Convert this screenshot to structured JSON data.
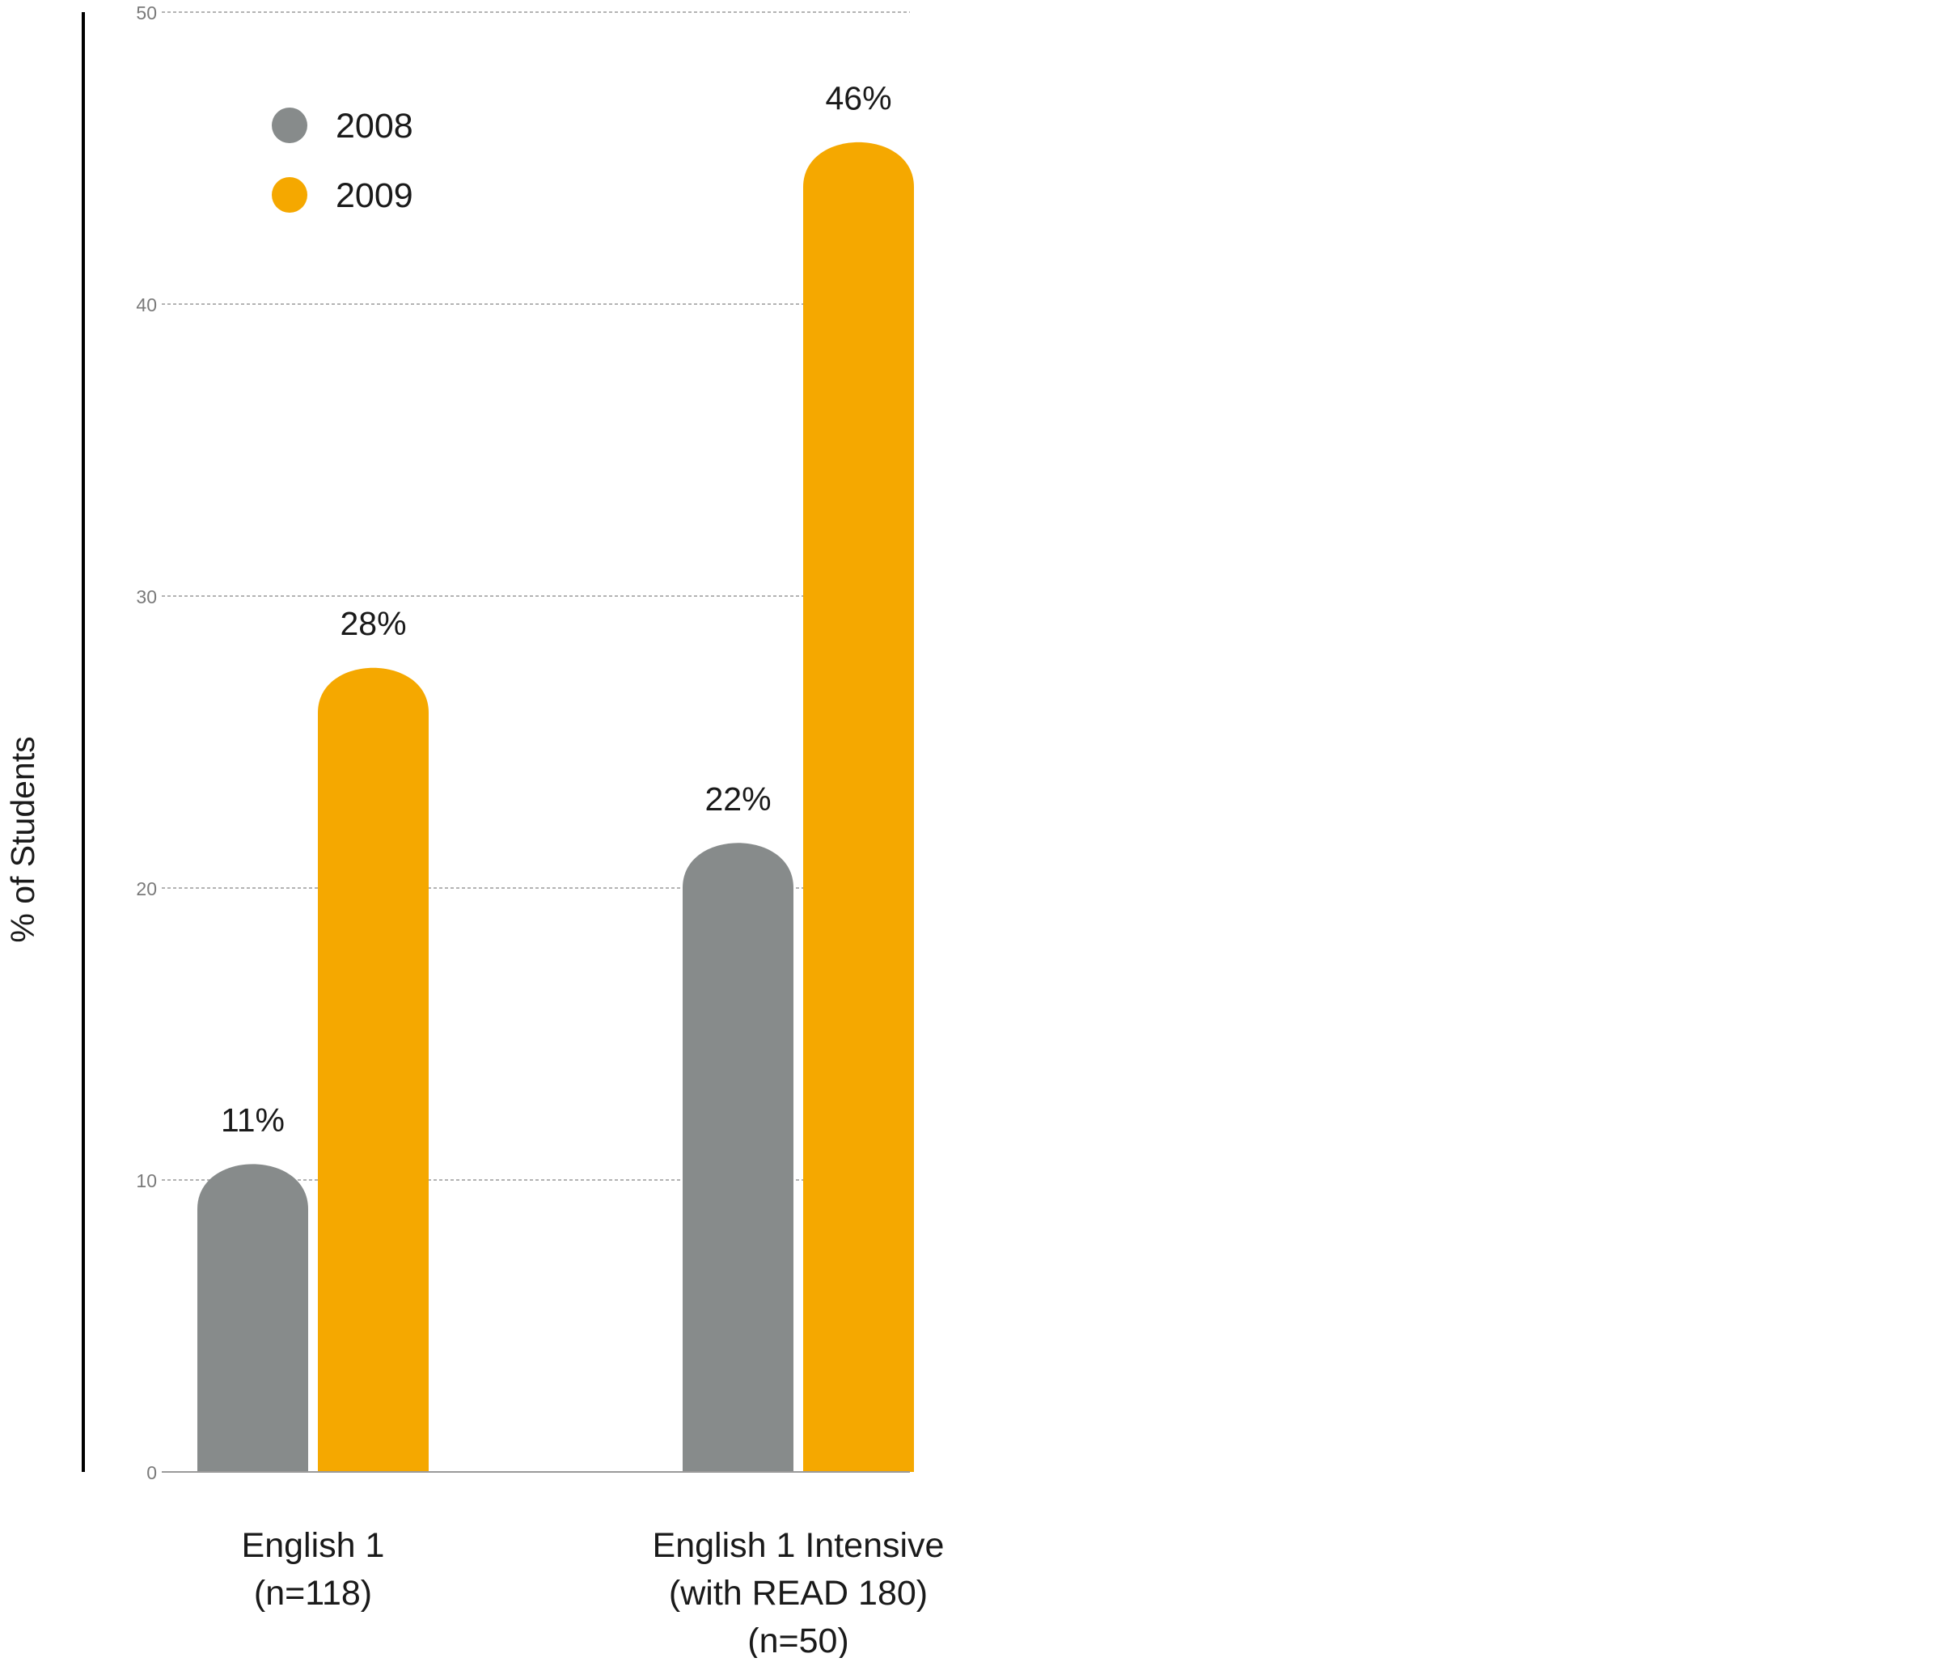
{
  "chart_data": {
    "type": "bar",
    "ylabel": "% of Students",
    "categories": [
      [
        "English 1",
        "(n=118)"
      ],
      [
        "English 1 Intensive",
        "(with READ 180)",
        "(n=50)"
      ]
    ],
    "ylim": [
      0,
      50
    ],
    "yticks": [
      "0",
      "10",
      "20",
      "30",
      "40",
      "50"
    ],
    "grid": true,
    "legend_position": "top-left",
    "series": [
      {
        "name": "2008",
        "color": "#878b8b",
        "values": [
          11,
          22
        ],
        "labels": [
          "11%",
          "22%"
        ]
      },
      {
        "name": "2009",
        "color": "#f5a800",
        "values": [
          28,
          46
        ],
        "labels": [
          "28%",
          "46%"
        ]
      }
    ]
  }
}
